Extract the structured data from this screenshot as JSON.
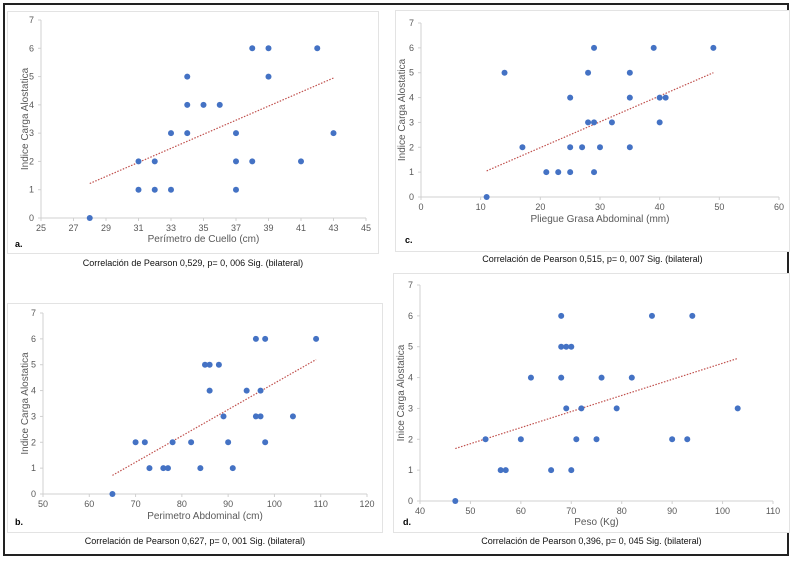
{
  "chart_data": [
    {
      "id": "a",
      "type": "scatter",
      "panel_letter": "a.",
      "xlabel": "Perímetro de Cuello (cm)",
      "ylabel": "Indice Carga Alostatica",
      "xlim": [
        25,
        45
      ],
      "ylim": [
        0,
        7
      ],
      "xticks": [
        25,
        27,
        29,
        31,
        33,
        35,
        37,
        39,
        41,
        43,
        45
      ],
      "yticks": [
        0,
        1,
        2,
        3,
        4,
        5,
        6,
        7
      ],
      "grid": false,
      "points": [
        [
          28,
          0
        ],
        [
          31,
          2
        ],
        [
          31,
          1
        ],
        [
          32,
          2
        ],
        [
          32,
          1
        ],
        [
          33,
          3
        ],
        [
          33,
          1
        ],
        [
          34,
          5
        ],
        [
          34,
          4
        ],
        [
          34,
          3
        ],
        [
          35,
          4
        ],
        [
          36,
          4
        ],
        [
          37,
          3
        ],
        [
          37,
          2
        ],
        [
          37,
          1
        ],
        [
          38,
          6
        ],
        [
          38,
          2
        ],
        [
          39,
          6
        ],
        [
          39,
          5
        ],
        [
          41,
          2
        ],
        [
          42,
          6
        ],
        [
          43,
          3
        ]
      ],
      "trendline": [
        [
          28,
          1.22
        ],
        [
          43,
          4.95
        ]
      ],
      "caption": "Correlación de Pearson 0,529, p= 0, 006 Sig. (bilateral)"
    },
    {
      "id": "c",
      "type": "scatter",
      "panel_letter": "c.",
      "xlabel": "Pliegue Grasa Abdominal (mm)",
      "ylabel": "Indice Carga Alostatica",
      "xlim": [
        0,
        60
      ],
      "ylim": [
        0,
        7
      ],
      "xticks": [
        0,
        10,
        20,
        30,
        40,
        50,
        60
      ],
      "yticks": [
        0,
        1,
        2,
        3,
        4,
        5,
        6,
        7
      ],
      "grid": false,
      "points": [
        [
          11,
          0
        ],
        [
          14,
          5
        ],
        [
          17,
          2
        ],
        [
          21,
          1
        ],
        [
          23,
          1
        ],
        [
          25,
          4
        ],
        [
          25,
          2
        ],
        [
          25,
          1
        ],
        [
          27,
          2
        ],
        [
          28,
          5
        ],
        [
          28,
          3
        ],
        [
          29,
          6
        ],
        [
          29,
          3
        ],
        [
          29,
          1
        ],
        [
          30,
          2
        ],
        [
          32,
          3
        ],
        [
          35,
          5
        ],
        [
          35,
          4
        ],
        [
          35,
          2
        ],
        [
          39,
          6
        ],
        [
          40,
          4
        ],
        [
          40,
          3
        ],
        [
          41,
          4
        ],
        [
          49,
          6
        ]
      ],
      "trendline": [
        [
          11,
          1.05
        ],
        [
          49,
          5.0
        ]
      ],
      "caption": "Correlación de Pearson 0,515, p= 0, 007 Sig. (bilateral)"
    },
    {
      "id": "b",
      "type": "scatter",
      "panel_letter": "b.",
      "xlabel": "Perimetro Abdominal (cm)",
      "ylabel": "Indice Carga Alostatica",
      "xlim": [
        50,
        120
      ],
      "ylim": [
        0,
        7
      ],
      "xticks": [
        50,
        60,
        70,
        80,
        90,
        100,
        110,
        120
      ],
      "yticks": [
        0,
        1,
        2,
        3,
        4,
        5,
        6,
        7
      ],
      "grid": false,
      "points": [
        [
          65,
          0
        ],
        [
          70,
          2
        ],
        [
          72,
          2
        ],
        [
          73,
          1
        ],
        [
          76,
          1
        ],
        [
          77,
          1
        ],
        [
          78,
          2
        ],
        [
          82,
          2
        ],
        [
          84,
          1
        ],
        [
          85,
          5
        ],
        [
          86,
          5
        ],
        [
          86,
          4
        ],
        [
          88,
          5
        ],
        [
          89,
          3
        ],
        [
          90,
          2
        ],
        [
          91,
          1
        ],
        [
          94,
          4
        ],
        [
          96,
          6
        ],
        [
          96,
          3
        ],
        [
          97,
          4
        ],
        [
          97,
          3
        ],
        [
          98,
          6
        ],
        [
          98,
          2
        ],
        [
          104,
          3
        ],
        [
          109,
          6
        ]
      ],
      "trendline": [
        [
          65,
          0.72
        ],
        [
          109,
          5.2
        ]
      ],
      "caption": "Correlación de Pearson 0,627, p= 0, 001 Sig. (bilateral)"
    },
    {
      "id": "d",
      "type": "scatter",
      "panel_letter": "d.",
      "xlabel": "Peso (Kg)",
      "ylabel": "Inice Carga Alostatica",
      "xlim": [
        40,
        110
      ],
      "ylim": [
        0,
        7
      ],
      "xticks": [
        40,
        50,
        60,
        70,
        80,
        90,
        100,
        110
      ],
      "yticks": [
        0,
        1,
        2,
        3,
        4,
        5,
        6,
        7
      ],
      "grid": false,
      "points": [
        [
          47,
          0
        ],
        [
          53,
          2
        ],
        [
          56,
          1
        ],
        [
          57,
          1
        ],
        [
          60,
          2
        ],
        [
          62,
          4
        ],
        [
          66,
          1
        ],
        [
          68,
          6
        ],
        [
          68,
          5
        ],
        [
          68,
          4
        ],
        [
          69,
          5
        ],
        [
          69,
          3
        ],
        [
          70,
          5
        ],
        [
          70,
          1
        ],
        [
          71,
          2
        ],
        [
          72,
          3
        ],
        [
          75,
          2
        ],
        [
          76,
          4
        ],
        [
          79,
          3
        ],
        [
          82,
          4
        ],
        [
          86,
          6
        ],
        [
          90,
          2
        ],
        [
          93,
          2
        ],
        [
          94,
          6
        ],
        [
          103,
          3
        ]
      ],
      "trendline": [
        [
          47,
          1.7
        ],
        [
          103,
          4.62
        ]
      ],
      "caption": "Correlación de Pearson 0,396, p= 0, 045 Sig. (bilateral)"
    }
  ],
  "colors": {
    "points": "#4472C4",
    "trendline": "#C0504D",
    "axis": "#d0d0d0",
    "tick_text": "#595959"
  }
}
